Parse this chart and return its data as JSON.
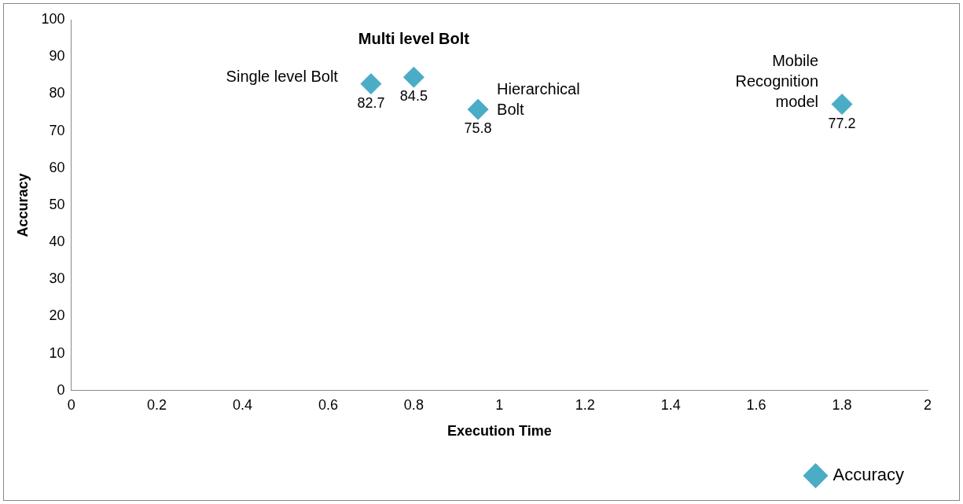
{
  "chart_data": {
    "type": "scatter",
    "xlabel": "Execution Time",
    "ylabel": "Accuracy",
    "x": [
      0.7,
      0.8,
      0.95,
      1.8
    ],
    "series": [
      {
        "name": "Accuracy",
        "color": "#4bacc6",
        "values": [
          82.7,
          84.5,
          75.8,
          77.2
        ]
      }
    ],
    "xlim": [
      0,
      2
    ],
    "xticks": [
      0,
      0.2,
      0.4,
      0.6,
      0.8,
      1,
      1.2,
      1.4,
      1.6,
      1.8,
      2
    ],
    "ylim": [
      0,
      100
    ],
    "yticks": [
      0,
      10,
      20,
      30,
      40,
      50,
      60,
      70,
      80,
      90,
      100
    ],
    "grid": false,
    "legend": "bottom right",
    "marker": "diamond",
    "data_labels": true,
    "annotations": [
      {
        "text": "Single level Bolt",
        "x": 0.7,
        "y": 82.7
      },
      {
        "text": "Multi level Bolt",
        "x": 0.8,
        "y": 84.5
      },
      {
        "text": "Hierarchical Bolt",
        "x": 0.95,
        "y": 75.8
      },
      {
        "text": "Mobile Recognition model",
        "x": 1.8,
        "y": 77.2
      }
    ]
  }
}
